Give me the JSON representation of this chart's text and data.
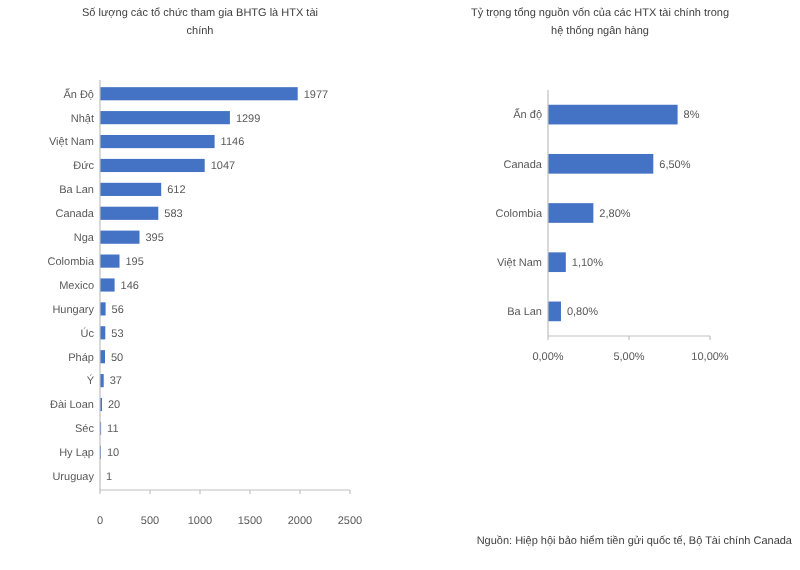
{
  "chart_data": [
    {
      "type": "bar",
      "orientation": "horizontal",
      "title": "Số lượng các tổ chức tham gia BHTG là HTX tài chính",
      "categories": [
        "Ấn Độ",
        "Nhật",
        "Việt Nam",
        "Đức",
        "Ba Lan",
        "Canada",
        "Nga",
        "Colombia",
        "Mexico",
        "Hungary",
        "Úc",
        "Pháp",
        "Ý",
        "Đài Loan",
        "Séc",
        "Hy Lạp",
        "Uruguay"
      ],
      "values": [
        1977,
        1299,
        1146,
        1047,
        612,
        583,
        395,
        195,
        146,
        56,
        53,
        50,
        37,
        20,
        11,
        10,
        1
      ],
      "color": "#4472c4",
      "xlim": [
        0,
        2500
      ],
      "xticks": [
        0,
        500,
        1000,
        1500,
        2000,
        2500
      ],
      "data_labels": true
    },
    {
      "type": "bar",
      "orientation": "horizontal",
      "title": "Tỷ trọng tổng nguồn vốn của các HTX tài chính trong hệ thống ngân hàng",
      "categories": [
        "Ấn độ",
        "Canada",
        "Colombia",
        "Việt Nam",
        "Ba Lan"
      ],
      "values": [
        8,
        6.5,
        2.8,
        1.1,
        0.8
      ],
      "value_labels": [
        "8%",
        "6,50%",
        "2,80%",
        "1,10%",
        "0,80%"
      ],
      "color": "#4472c4",
      "xlim": [
        0,
        10
      ],
      "xticks": [
        {
          "value": 0,
          "label": "0,00%"
        },
        {
          "value": 5,
          "label": "5,00%"
        },
        {
          "value": 10,
          "label": "10,00%"
        }
      ],
      "annotations": [
        "Nguồn: Hiệp hội bảo hiểm tiền gửi quốc tế, Bộ Tài chính Canada"
      ]
    }
  ]
}
